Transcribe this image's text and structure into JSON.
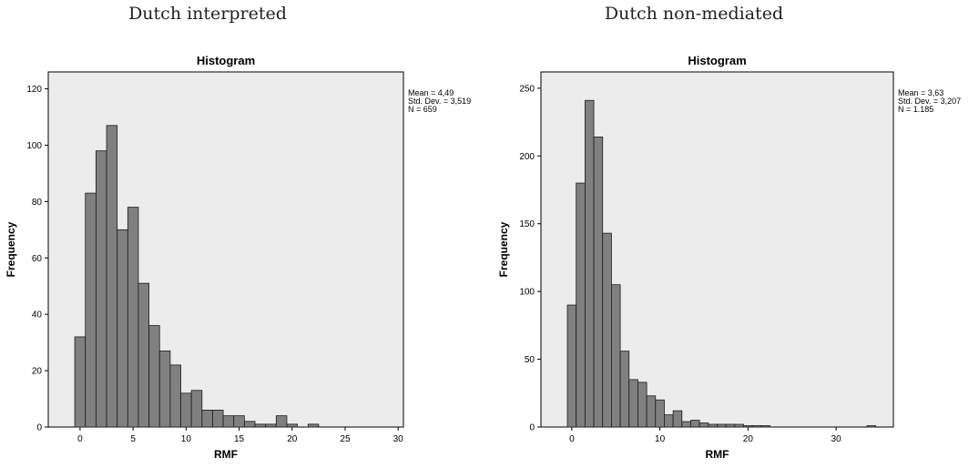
{
  "captions": [
    "Dutch interpreted",
    "Dutch non-mediated"
  ],
  "chart_data": [
    {
      "type": "bar",
      "subtype": "histogram",
      "title": "Histogram",
      "xlabel": "RMF",
      "ylabel": "Frequency",
      "bin_width": 1,
      "bin_starts": [
        -0.5,
        0.5,
        1.5,
        2.5,
        3.5,
        4.5,
        5.5,
        6.5,
        7.5,
        8.5,
        9.5,
        10.5,
        11.5,
        12.5,
        13.5,
        14.5,
        15.5,
        16.5,
        17.5,
        18.5,
        19.5,
        20.5,
        21.5
      ],
      "values": [
        32,
        83,
        98,
        107,
        70,
        78,
        51,
        36,
        27,
        22,
        12,
        13,
        6,
        6,
        4,
        4,
        2,
        1,
        1,
        4,
        1,
        0,
        1
      ],
      "xlim": [
        -3,
        30.5
      ],
      "ylim": [
        0,
        126
      ],
      "xticks": [
        0,
        5,
        10,
        15,
        20,
        25,
        30
      ],
      "yticks": [
        0,
        20,
        40,
        60,
        80,
        100,
        120
      ],
      "stats": [
        "Mean = 4,49",
        "Std. Dev. = 3,519",
        "N = 659"
      ],
      "grid": false,
      "legend": "none"
    },
    {
      "type": "bar",
      "subtype": "histogram",
      "title": "Histogram",
      "xlabel": "RMF",
      "ylabel": "Frequency",
      "bin_width": 1,
      "bin_starts": [
        -0.5,
        0.5,
        1.5,
        2.5,
        3.5,
        4.5,
        5.5,
        6.5,
        7.5,
        8.5,
        9.5,
        10.5,
        11.5,
        12.5,
        13.5,
        14.5,
        15.5,
        16.5,
        17.5,
        18.5,
        19.5,
        20.5,
        21.5,
        33.5
      ],
      "values": [
        90,
        180,
        241,
        214,
        143,
        105,
        56,
        35,
        33,
        23,
        20,
        9,
        12,
        4,
        5,
        3,
        2,
        2,
        2,
        2,
        1,
        1,
        1,
        1
      ],
      "xlim": [
        -3.5,
        36.5
      ],
      "ylim": [
        0,
        262
      ],
      "xticks": [
        0,
        10,
        20,
        30
      ],
      "yticks": [
        0,
        50,
        100,
        150,
        200,
        250
      ],
      "stats": [
        "Mean = 3,63",
        "Std. Dev. = 3,207",
        "N = 1.185"
      ],
      "grid": false,
      "legend": "none"
    }
  ]
}
